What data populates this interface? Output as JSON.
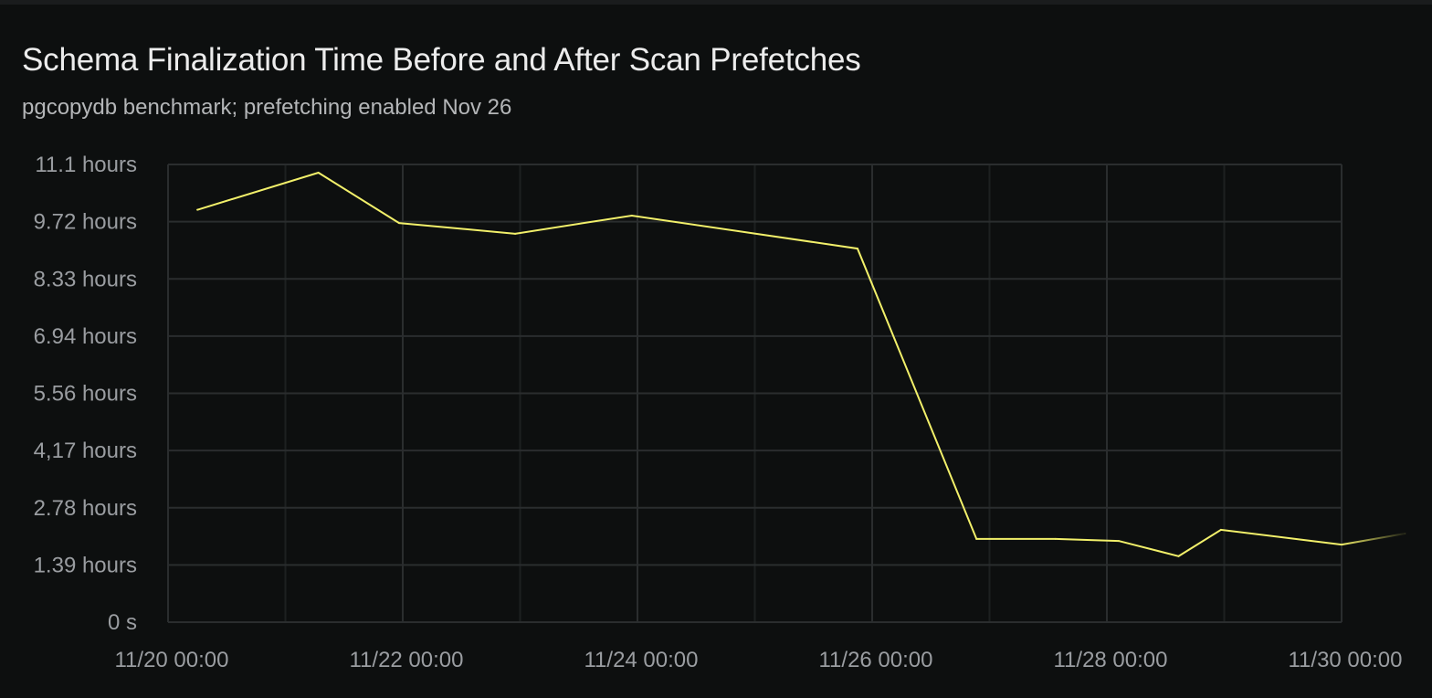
{
  "chart_data": {
    "type": "line",
    "title": "Schema Finalization Time Before and After Scan Prefetches",
    "subtitle": "pgcopydb benchmark; prefetching enabled Nov 26",
    "xlabel": "",
    "ylabel": "",
    "x_tick_labels": [
      "11/20 00:00",
      "11/22 00:00",
      "11/24 00:00",
      "11/26 00:00",
      "11/28 00:00",
      "11/30 00:00"
    ],
    "y_tick_labels": [
      "0 s",
      "1.39 hours",
      "2.78 hours",
      "4,17 hours",
      "5.56 hours",
      "6.94 hours",
      "8.33 hours",
      "9.72 hours",
      "11.1 hours"
    ],
    "ylim_hours": [
      0,
      11.1
    ],
    "xlim": [
      "11/20 00:00",
      "11/30 00:00"
    ],
    "grid": true,
    "line_color": "#f2f06a",
    "series": [
      {
        "x": [
          "11/20 06:00",
          "11/21 06:45",
          "11/21 23:15",
          "11/22 23:00",
          "11/23 22:50",
          "11/25 21:00",
          "11/26 21:20",
          "11/27 13:30",
          "11/28 02:25",
          "11/28 14:40",
          "11/28 23:20",
          "11/30 00:00",
          "11/30 13:00"
        ],
        "y_hours": [
          10.0,
          10.9,
          9.68,
          9.42,
          9.86,
          9.06,
          2.02,
          2.02,
          1.97,
          1.6,
          2.24,
          1.88,
          2.15
        ]
      }
    ]
  }
}
